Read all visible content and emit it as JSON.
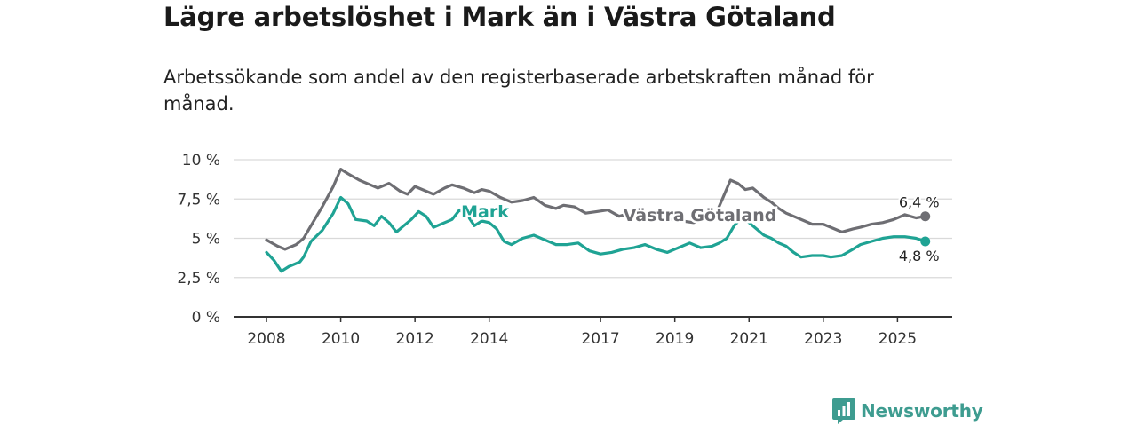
{
  "title": "Lägre arbetslöshet i Mark än i Västra Götaland",
  "subtitle": "Arbetssökande som andel av den registerbaserade arbetskraften månad för månad.",
  "brand": {
    "name": "Newsworthy",
    "icon": "newsworthy-logo-icon"
  },
  "colors": {
    "mark": "#1fa394",
    "vg": "#6e6e73",
    "grid": "#d9d9d9",
    "axis": "#333333"
  },
  "chart_data": {
    "type": "line",
    "xlim": [
      2008,
      2025.9
    ],
    "ylim": [
      0,
      10
    ],
    "y_ticks": [
      0,
      2.5,
      5,
      7.5,
      10
    ],
    "y_tick_labels": [
      "0 %",
      "2,5 %",
      "5 %",
      "7,5 %",
      "10 %"
    ],
    "x_ticks": [
      2008,
      2010,
      2012,
      2014,
      2017,
      2019,
      2021,
      2023,
      2025
    ],
    "x_tick_labels": [
      "2008",
      "2010",
      "2012",
      "2014",
      "2017",
      "2019",
      "2021",
      "2023",
      "2025"
    ],
    "series": [
      {
        "name": "Västra Götaland",
        "label": "Västra Götaland",
        "end_label": "6,4 %",
        "end_value": 6.4,
        "points": [
          [
            2008.0,
            4.9
          ],
          [
            2008.3,
            4.5
          ],
          [
            2008.5,
            4.3
          ],
          [
            2008.8,
            4.6
          ],
          [
            2009.0,
            5.0
          ],
          [
            2009.2,
            5.8
          ],
          [
            2009.5,
            7.0
          ],
          [
            2009.8,
            8.3
          ],
          [
            2010.0,
            9.4
          ],
          [
            2010.2,
            9.1
          ],
          [
            2010.5,
            8.7
          ],
          [
            2010.8,
            8.4
          ],
          [
            2011.0,
            8.2
          ],
          [
            2011.3,
            8.5
          ],
          [
            2011.6,
            8.0
          ],
          [
            2011.8,
            7.8
          ],
          [
            2012.0,
            8.3
          ],
          [
            2012.2,
            8.1
          ],
          [
            2012.5,
            7.8
          ],
          [
            2012.8,
            8.2
          ],
          [
            2013.0,
            8.4
          ],
          [
            2013.3,
            8.2
          ],
          [
            2013.6,
            7.9
          ],
          [
            2013.8,
            8.1
          ],
          [
            2014.0,
            8.0
          ],
          [
            2014.3,
            7.6
          ],
          [
            2014.6,
            7.3
          ],
          [
            2014.9,
            7.4
          ],
          [
            2015.2,
            7.6
          ],
          [
            2015.5,
            7.1
          ],
          [
            2015.8,
            6.9
          ],
          [
            2016.0,
            7.1
          ],
          [
            2016.3,
            7.0
          ],
          [
            2016.6,
            6.6
          ],
          [
            2016.9,
            6.7
          ],
          [
            2017.2,
            6.8
          ],
          [
            2017.5,
            6.4
          ],
          [
            2017.8,
            6.6
          ],
          [
            2018.0,
            6.4
          ],
          [
            2018.3,
            6.5
          ],
          [
            2018.6,
            6.3
          ],
          [
            2018.9,
            6.2
          ],
          [
            2019.2,
            6.1
          ],
          [
            2019.5,
            6.0
          ],
          [
            2019.8,
            6.2
          ],
          [
            2020.1,
            6.5
          ],
          [
            2020.3,
            7.6
          ],
          [
            2020.5,
            8.7
          ],
          [
            2020.7,
            8.5
          ],
          [
            2020.9,
            8.1
          ],
          [
            2021.1,
            8.2
          ],
          [
            2021.4,
            7.6
          ],
          [
            2021.6,
            7.3
          ],
          [
            2021.8,
            6.9
          ],
          [
            2022.0,
            6.6
          ],
          [
            2022.2,
            6.4
          ],
          [
            2022.5,
            6.1
          ],
          [
            2022.7,
            5.9
          ],
          [
            2023.0,
            5.9
          ],
          [
            2023.3,
            5.6
          ],
          [
            2023.5,
            5.4
          ],
          [
            2023.8,
            5.6
          ],
          [
            2024.0,
            5.7
          ],
          [
            2024.3,
            5.9
          ],
          [
            2024.6,
            6.0
          ],
          [
            2024.9,
            6.2
          ],
          [
            2025.2,
            6.5
          ],
          [
            2025.5,
            6.3
          ],
          [
            2025.75,
            6.4
          ]
        ]
      },
      {
        "name": "Mark",
        "label": "Mark",
        "end_label": "4,8 %",
        "end_value": 4.8,
        "points": [
          [
            2008.0,
            4.1
          ],
          [
            2008.2,
            3.6
          ],
          [
            2008.4,
            2.9
          ],
          [
            2008.6,
            3.2
          ],
          [
            2008.9,
            3.5
          ],
          [
            2009.0,
            3.8
          ],
          [
            2009.2,
            4.8
          ],
          [
            2009.5,
            5.5
          ],
          [
            2009.8,
            6.6
          ],
          [
            2010.0,
            7.6
          ],
          [
            2010.2,
            7.2
          ],
          [
            2010.4,
            6.2
          ],
          [
            2010.7,
            6.1
          ],
          [
            2010.9,
            5.8
          ],
          [
            2011.1,
            6.4
          ],
          [
            2011.3,
            6.0
          ],
          [
            2011.5,
            5.4
          ],
          [
            2011.7,
            5.8
          ],
          [
            2011.9,
            6.2
          ],
          [
            2012.1,
            6.7
          ],
          [
            2012.3,
            6.4
          ],
          [
            2012.5,
            5.7
          ],
          [
            2012.8,
            6.0
          ],
          [
            2013.0,
            6.2
          ],
          [
            2013.2,
            6.8
          ],
          [
            2013.4,
            6.5
          ],
          [
            2013.6,
            5.8
          ],
          [
            2013.8,
            6.1
          ],
          [
            2014.0,
            6.0
          ],
          [
            2014.2,
            5.6
          ],
          [
            2014.4,
            4.8
          ],
          [
            2014.6,
            4.6
          ],
          [
            2014.9,
            5.0
          ],
          [
            2015.2,
            5.2
          ],
          [
            2015.5,
            4.9
          ],
          [
            2015.8,
            4.6
          ],
          [
            2016.1,
            4.6
          ],
          [
            2016.4,
            4.7
          ],
          [
            2016.7,
            4.2
          ],
          [
            2017.0,
            4.0
          ],
          [
            2017.3,
            4.1
          ],
          [
            2017.6,
            4.3
          ],
          [
            2017.9,
            4.4
          ],
          [
            2018.2,
            4.6
          ],
          [
            2018.5,
            4.3
          ],
          [
            2018.8,
            4.1
          ],
          [
            2019.1,
            4.4
          ],
          [
            2019.4,
            4.7
          ],
          [
            2019.7,
            4.4
          ],
          [
            2020.0,
            4.5
          ],
          [
            2020.2,
            4.7
          ],
          [
            2020.4,
            5.0
          ],
          [
            2020.6,
            5.8
          ],
          [
            2020.8,
            6.3
          ],
          [
            2021.0,
            6.0
          ],
          [
            2021.2,
            5.6
          ],
          [
            2021.4,
            5.2
          ],
          [
            2021.6,
            5.0
          ],
          [
            2021.8,
            4.7
          ],
          [
            2022.0,
            4.5
          ],
          [
            2022.2,
            4.1
          ],
          [
            2022.4,
            3.8
          ],
          [
            2022.7,
            3.9
          ],
          [
            2023.0,
            3.9
          ],
          [
            2023.2,
            3.8
          ],
          [
            2023.5,
            3.9
          ],
          [
            2023.8,
            4.3
          ],
          [
            2024.0,
            4.6
          ],
          [
            2024.3,
            4.8
          ],
          [
            2024.6,
            5.0
          ],
          [
            2024.9,
            5.1
          ],
          [
            2025.2,
            5.1
          ],
          [
            2025.5,
            5.0
          ],
          [
            2025.75,
            4.8
          ]
        ]
      }
    ]
  }
}
